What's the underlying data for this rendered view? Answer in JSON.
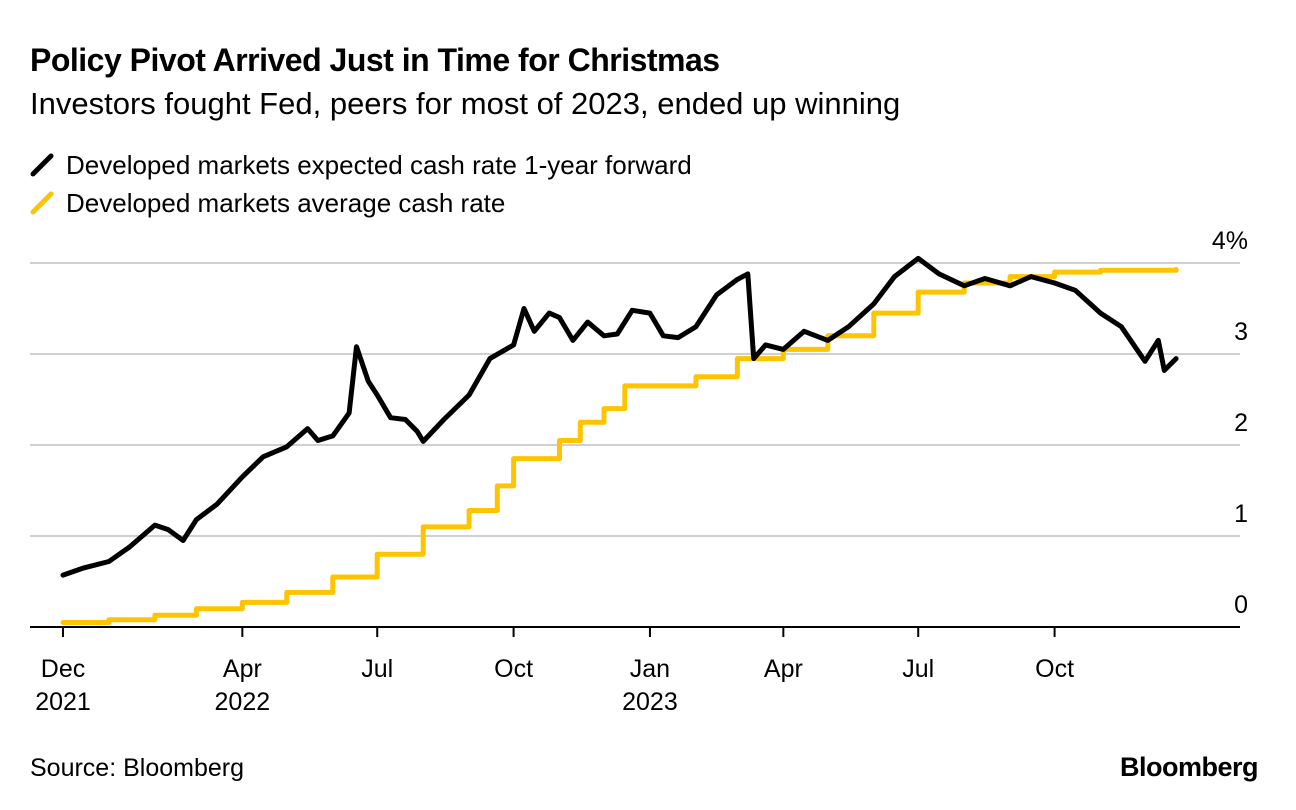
{
  "header": {
    "title": "Policy Pivot Arrived Just in Time for Christmas",
    "subtitle": "Investors fought Fed, peers for most of 2023, ended up winning"
  },
  "legend": [
    {
      "label": "Developed markets expected cash rate 1-year forward",
      "color": "#000000"
    },
    {
      "label": "Developed markets average cash rate",
      "color": "#FFC400"
    }
  ],
  "footer": {
    "source": "Source: Bloomberg",
    "brand": "Bloomberg"
  },
  "chart_data": {
    "type": "line",
    "x_range": [
      "2021-12-01",
      "2023-12-31"
    ],
    "ylim": [
      0,
      4
    ],
    "y_ticks": [
      {
        "value": 4,
        "label": "4%"
      },
      {
        "value": 3,
        "label": "3"
      },
      {
        "value": 2,
        "label": "2"
      },
      {
        "value": 1,
        "label": "1"
      },
      {
        "value": 0,
        "label": "0"
      }
    ],
    "x_ticks": [
      {
        "date": "2021-12-01",
        "label": "Dec",
        "year": "2021"
      },
      {
        "date": "2022-04-01",
        "label": "Apr",
        "year": "2022"
      },
      {
        "date": "2022-07-01",
        "label": "Jul",
        "year": ""
      },
      {
        "date": "2022-10-01",
        "label": "Oct",
        "year": ""
      },
      {
        "date": "2023-01-01",
        "label": "Jan",
        "year": "2023"
      },
      {
        "date": "2023-04-01",
        "label": "Apr",
        "year": ""
      },
      {
        "date": "2023-07-01",
        "label": "Jul",
        "year": ""
      },
      {
        "date": "2023-10-01",
        "label": "Oct",
        "year": ""
      }
    ],
    "grid": true,
    "series": [
      {
        "name": "Developed markets expected cash rate 1-year forward",
        "color": "#000000",
        "points": [
          [
            "2021-12-01",
            0.57
          ],
          [
            "2021-12-15",
            0.65
          ],
          [
            "2022-01-01",
            0.72
          ],
          [
            "2022-01-15",
            0.88
          ],
          [
            "2022-02-01",
            1.12
          ],
          [
            "2022-02-10",
            1.07
          ],
          [
            "2022-02-20",
            0.95
          ],
          [
            "2022-03-01",
            1.18
          ],
          [
            "2022-03-15",
            1.35
          ],
          [
            "2022-04-01",
            1.65
          ],
          [
            "2022-04-15",
            1.87
          ],
          [
            "2022-05-01",
            1.98
          ],
          [
            "2022-05-15",
            2.18
          ],
          [
            "2022-05-22",
            2.05
          ],
          [
            "2022-06-01",
            2.1
          ],
          [
            "2022-06-12",
            2.35
          ],
          [
            "2022-06-17",
            3.08
          ],
          [
            "2022-06-25",
            2.7
          ],
          [
            "2022-07-01",
            2.55
          ],
          [
            "2022-07-10",
            2.3
          ],
          [
            "2022-07-20",
            2.28
          ],
          [
            "2022-07-28",
            2.15
          ],
          [
            "2022-08-01",
            2.04
          ],
          [
            "2022-08-15",
            2.28
          ],
          [
            "2022-09-01",
            2.55
          ],
          [
            "2022-09-15",
            2.95
          ],
          [
            "2022-10-01",
            3.1
          ],
          [
            "2022-10-08",
            3.5
          ],
          [
            "2022-10-15",
            3.25
          ],
          [
            "2022-10-25",
            3.45
          ],
          [
            "2022-11-01",
            3.4
          ],
          [
            "2022-11-10",
            3.15
          ],
          [
            "2022-11-20",
            3.35
          ],
          [
            "2022-12-01",
            3.2
          ],
          [
            "2022-12-10",
            3.22
          ],
          [
            "2022-12-20",
            3.48
          ],
          [
            "2023-01-01",
            3.45
          ],
          [
            "2023-01-10",
            3.2
          ],
          [
            "2023-01-20",
            3.18
          ],
          [
            "2023-02-01",
            3.3
          ],
          [
            "2023-02-15",
            3.65
          ],
          [
            "2023-03-01",
            3.82
          ],
          [
            "2023-03-08",
            3.88
          ],
          [
            "2023-03-12",
            2.95
          ],
          [
            "2023-03-20",
            3.1
          ],
          [
            "2023-04-01",
            3.05
          ],
          [
            "2023-04-15",
            3.25
          ],
          [
            "2023-05-01",
            3.15
          ],
          [
            "2023-05-15",
            3.3
          ],
          [
            "2023-06-01",
            3.55
          ],
          [
            "2023-06-15",
            3.85
          ],
          [
            "2023-07-01",
            4.05
          ],
          [
            "2023-07-15",
            3.88
          ],
          [
            "2023-08-01",
            3.75
          ],
          [
            "2023-08-15",
            3.83
          ],
          [
            "2023-09-01",
            3.75
          ],
          [
            "2023-09-15",
            3.85
          ],
          [
            "2023-10-01",
            3.78
          ],
          [
            "2023-10-15",
            3.7
          ],
          [
            "2023-11-01",
            3.45
          ],
          [
            "2023-11-15",
            3.3
          ],
          [
            "2023-12-01",
            2.92
          ],
          [
            "2023-12-10",
            3.15
          ],
          [
            "2023-12-14",
            2.82
          ],
          [
            "2023-12-22",
            2.95
          ]
        ]
      },
      {
        "name": "Developed markets average cash rate",
        "color": "#FFC400",
        "points": [
          [
            "2021-12-01",
            0.05
          ],
          [
            "2022-01-01",
            0.08
          ],
          [
            "2022-02-01",
            0.13
          ],
          [
            "2022-03-01",
            0.2
          ],
          [
            "2022-04-01",
            0.27
          ],
          [
            "2022-05-01",
            0.38
          ],
          [
            "2022-06-01",
            0.55
          ],
          [
            "2022-07-01",
            0.8
          ],
          [
            "2022-08-01",
            1.1
          ],
          [
            "2022-09-01",
            1.28
          ],
          [
            "2022-09-20",
            1.55
          ],
          [
            "2022-10-01",
            1.85
          ],
          [
            "2022-11-01",
            2.05
          ],
          [
            "2022-11-15",
            2.25
          ],
          [
            "2022-12-01",
            2.4
          ],
          [
            "2022-12-15",
            2.65
          ],
          [
            "2023-01-01",
            2.65
          ],
          [
            "2023-02-01",
            2.75
          ],
          [
            "2023-03-01",
            2.95
          ],
          [
            "2023-04-01",
            3.05
          ],
          [
            "2023-05-01",
            3.2
          ],
          [
            "2023-06-01",
            3.45
          ],
          [
            "2023-07-01",
            3.68
          ],
          [
            "2023-08-01",
            3.78
          ],
          [
            "2023-09-01",
            3.85
          ],
          [
            "2023-10-01",
            3.9
          ],
          [
            "2023-11-01",
            3.92
          ],
          [
            "2023-12-22",
            3.93
          ]
        ]
      }
    ]
  }
}
